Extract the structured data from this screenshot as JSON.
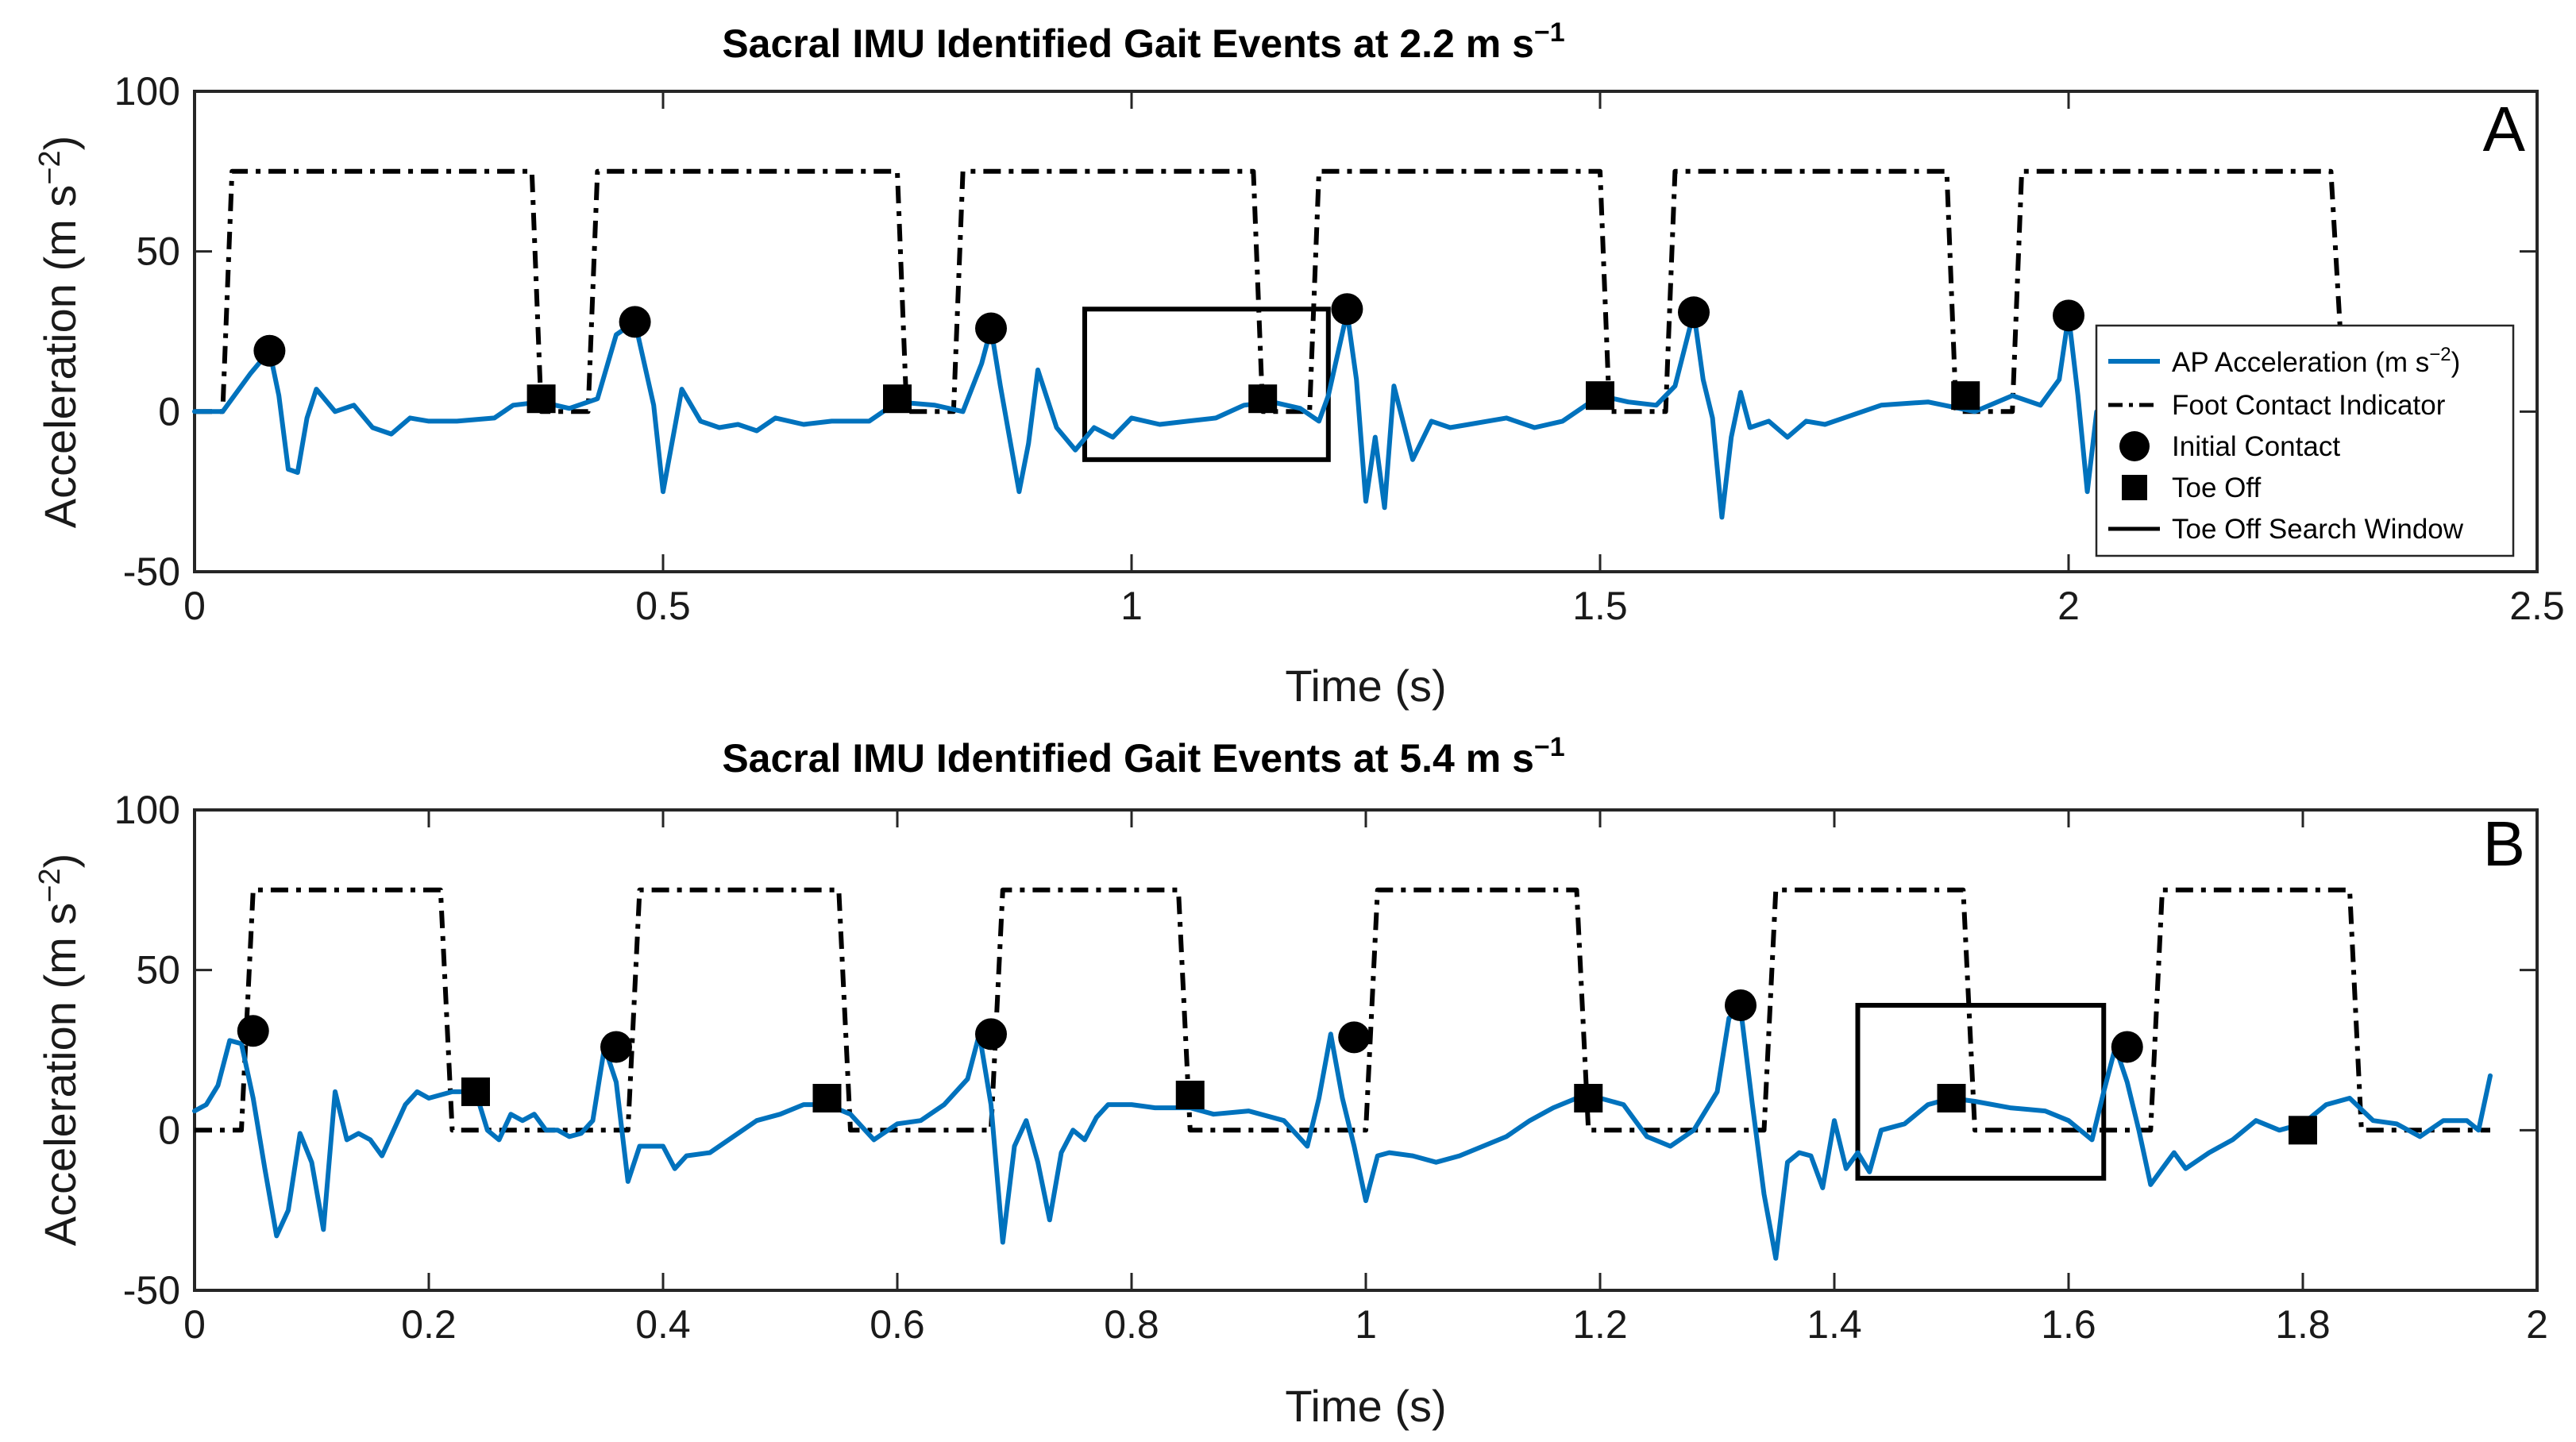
{
  "chart_data": [
    {
      "type": "line",
      "panel_label": "A",
      "title": "Sacral IMU Identified Gait Events at 2.2 m s",
      "title_exponent": "−1",
      "xlabel": "Time (s)",
      "ylabel": "Acceleration (m s",
      "ylabel_exponent": "−2",
      "ylabel_close": ")",
      "xlim": [
        0,
        2.5
      ],
      "ylim": [
        -50,
        100
      ],
      "xticks": [
        0,
        0.5,
        1,
        1.5,
        2,
        2.5
      ],
      "xtick_labels": [
        "0",
        "0.5",
        "1",
        "1.5",
        "2",
        "2.5"
      ],
      "yticks": [
        -50,
        0,
        50,
        100
      ],
      "ytick_labels": [
        "-50",
        "0",
        "50",
        "100"
      ],
      "legend": {
        "position": "right",
        "entries": [
          {
            "label": "AP Acceleration (m s",
            "exp": "−2",
            "close": ")"
          },
          {
            "label": "Foot Contact Indicator"
          },
          {
            "label": "Initial Contact"
          },
          {
            "label": "Toe Off"
          },
          {
            "label": "Toe Off Search Window"
          }
        ]
      },
      "colors": {
        "accel": "#0072BD",
        "indicator": "#000000",
        "markers": "#000000"
      },
      "series": [
        {
          "name": "AP Acceleration",
          "x": [
            0,
            0.03,
            0.06,
            0.08,
            0.09,
            0.1,
            0.11,
            0.12,
            0.13,
            0.15,
            0.17,
            0.19,
            0.21,
            0.23,
            0.25,
            0.28,
            0.32,
            0.34,
            0.37,
            0.4,
            0.43,
            0.45,
            0.47,
            0.49,
            0.5,
            0.52,
            0.54,
            0.56,
            0.58,
            0.6,
            0.62,
            0.65,
            0.68,
            0.72,
            0.75,
            0.79,
            0.82,
            0.84,
            0.85,
            0.86,
            0.88,
            0.89,
            0.9,
            0.92,
            0.94,
            0.96,
            0.98,
            1.0,
            1.03,
            1.06,
            1.09,
            1.12,
            1.15,
            1.18,
            1.2,
            1.21,
            1.23,
            1.24,
            1.25,
            1.26,
            1.27,
            1.28,
            1.3,
            1.32,
            1.34,
            1.36,
            1.38,
            1.4,
            1.43,
            1.46,
            1.5,
            1.53,
            1.56,
            1.58,
            1.6,
            1.61,
            1.62,
            1.63,
            1.64,
            1.65,
            1.66,
            1.68,
            1.7,
            1.72,
            1.74,
            1.76,
            1.8,
            1.85,
            1.9,
            1.94,
            1.97,
            1.99,
            2.0,
            2.01,
            2.02,
            2.03,
            2.04
          ],
          "y": [
            0,
            0,
            12,
            19,
            5,
            -18,
            -19,
            -2,
            7,
            0,
            2,
            -5,
            -7,
            -2,
            -3,
            -3,
            -2,
            2,
            3,
            1,
            4,
            24,
            28,
            2,
            -25,
            7,
            -3,
            -5,
            -4,
            -6,
            -2,
            -4,
            -3,
            -3,
            3,
            2,
            0,
            15,
            26,
            8,
            -25,
            -10,
            13,
            -5,
            -12,
            -5,
            -8,
            -2,
            -4,
            -3,
            -2,
            2,
            3,
            1,
            -3,
            5,
            31,
            10,
            -28,
            -8,
            -30,
            8,
            -15,
            -3,
            -5,
            -4,
            -3,
            -2,
            -5,
            -3,
            5,
            3,
            2,
            8,
            31,
            10,
            -2,
            -33,
            -8,
            6,
            -5,
            -3,
            -8,
            -3,
            -4,
            -2,
            2,
            3,
            0,
            5,
            2,
            10,
            30,
            5,
            -25,
            0,
            2
          ]
        },
        {
          "name": "Foot Contact Indicator",
          "x": [
            0,
            0.03,
            0.04,
            0.36,
            0.37,
            0.42,
            0.43,
            0.75,
            0.76,
            0.81,
            0.82,
            1.13,
            1.14,
            1.19,
            1.2,
            1.5,
            1.51,
            1.57,
            1.58,
            1.87,
            1.88,
            1.94,
            1.95,
            2.28,
            2.29
          ],
          "y": [
            0,
            0,
            75,
            75,
            0,
            0,
            75,
            75,
            0,
            0,
            75,
            75,
            0,
            0,
            75,
            75,
            0,
            0,
            75,
            75,
            0,
            0,
            75,
            75,
            25
          ]
        }
      ],
      "initial_contact": {
        "x": [
          0.08,
          0.47,
          0.85,
          1.23,
          1.6,
          2.0
        ],
        "y": [
          19,
          28,
          26,
          32,
          31,
          30
        ]
      },
      "toe_off": {
        "x": [
          0.37,
          0.75,
          1.14,
          1.5,
          1.89
        ],
        "y": [
          4,
          4,
          4,
          5,
          5
        ]
      },
      "toe_off_search_window": {
        "x": [
          0.95,
          1.21
        ],
        "y": [
          -15,
          32
        ]
      }
    },
    {
      "type": "line",
      "panel_label": "B",
      "title": "Sacral IMU Identified Gait Events at 5.4 m s",
      "title_exponent": "−1",
      "xlabel": "Time (s)",
      "ylabel": "Acceleration (m s",
      "ylabel_exponent": "−2",
      "ylabel_close": ")",
      "xlim": [
        0,
        2
      ],
      "ylim": [
        -50,
        100
      ],
      "xticks": [
        0,
        0.2,
        0.4,
        0.6,
        0.8,
        1,
        1.2,
        1.4,
        1.6,
        1.8,
        2
      ],
      "xtick_labels": [
        "0",
        "0.2",
        "0.4",
        "0.6",
        "0.8",
        "1",
        "1.2",
        "1.4",
        "1.6",
        "1.8",
        "2"
      ],
      "yticks": [
        -50,
        0,
        50,
        100
      ],
      "ytick_labels": [
        "-50",
        "0",
        "50",
        "100"
      ],
      "colors": {
        "accel": "#0072BD",
        "indicator": "#000000",
        "markers": "#000000"
      },
      "series": [
        {
          "name": "AP Acceleration",
          "x": [
            0,
            0.01,
            0.02,
            0.03,
            0.04,
            0.05,
            0.06,
            0.07,
            0.08,
            0.09,
            0.1,
            0.11,
            0.12,
            0.13,
            0.14,
            0.15,
            0.16,
            0.17,
            0.18,
            0.19,
            0.2,
            0.22,
            0.24,
            0.25,
            0.26,
            0.27,
            0.28,
            0.29,
            0.3,
            0.31,
            0.32,
            0.33,
            0.34,
            0.35,
            0.36,
            0.37,
            0.38,
            0.39,
            0.4,
            0.41,
            0.42,
            0.44,
            0.46,
            0.48,
            0.5,
            0.52,
            0.54,
            0.56,
            0.58,
            0.6,
            0.62,
            0.64,
            0.66,
            0.67,
            0.68,
            0.69,
            0.7,
            0.71,
            0.72,
            0.73,
            0.74,
            0.75,
            0.76,
            0.77,
            0.78,
            0.8,
            0.82,
            0.84,
            0.85,
            0.87,
            0.9,
            0.93,
            0.95,
            0.96,
            0.97,
            0.98,
            0.99,
            1.0,
            1.01,
            1.02,
            1.04,
            1.06,
            1.08,
            1.1,
            1.12,
            1.14,
            1.16,
            1.18,
            1.19,
            1.2,
            1.22,
            1.24,
            1.26,
            1.28,
            1.3,
            1.31,
            1.32,
            1.33,
            1.34,
            1.35,
            1.36,
            1.37,
            1.38,
            1.39,
            1.4,
            1.41,
            1.42,
            1.43,
            1.44,
            1.46,
            1.48,
            1.5,
            1.52,
            1.55,
            1.58,
            1.6,
            1.62,
            1.63,
            1.64,
            1.65,
            1.66,
            1.67,
            1.68,
            1.69,
            1.7,
            1.72,
            1.74,
            1.76,
            1.78,
            1.8,
            1.82,
            1.84,
            1.86,
            1.88,
            1.9,
            1.92,
            1.94,
            1.95,
            1.96
          ],
          "y": [
            6,
            8,
            14,
            28,
            27,
            10,
            -12,
            -33,
            -25,
            -1,
            -10,
            -31,
            12,
            -3,
            -1,
            -3,
            -8,
            0,
            8,
            12,
            10,
            12,
            12,
            0,
            -3,
            5,
            3,
            5,
            0,
            0,
            -2,
            -1,
            3,
            26,
            15,
            -16,
            -5,
            -5,
            -5,
            -12,
            -8,
            -7,
            -2,
            3,
            5,
            8,
            8,
            5,
            -3,
            2,
            3,
            8,
            16,
            30,
            8,
            -35,
            -5,
            3,
            -10,
            -28,
            -7,
            0,
            -3,
            4,
            8,
            8,
            7,
            7,
            7,
            5,
            6,
            3,
            -5,
            10,
            30,
            10,
            -5,
            -22,
            -8,
            -7,
            -8,
            -10,
            -8,
            -5,
            -2,
            3,
            7,
            10,
            12,
            10,
            8,
            -2,
            -5,
            0,
            12,
            35,
            38,
            8,
            -20,
            -40,
            -10,
            -7,
            -8,
            -18,
            3,
            -12,
            -7,
            -13,
            0,
            2,
            8,
            10,
            9,
            7,
            6,
            3,
            -3,
            12,
            26,
            15,
            0,
            -17,
            -12,
            -7,
            -12,
            -7,
            -3,
            3,
            0,
            2,
            8,
            10,
            3,
            2,
            -2,
            3,
            3,
            0,
            17
          ]
        },
        {
          "name": "Foot Contact Indicator",
          "x": [
            0,
            0.04,
            0.05,
            0.21,
            0.22,
            0.37,
            0.38,
            0.55,
            0.56,
            0.68,
            0.69,
            0.84,
            0.85,
            1.0,
            1.01,
            1.18,
            1.19,
            1.34,
            1.35,
            1.51,
            1.52,
            1.67,
            1.68,
            1.84,
            1.85,
            1.96
          ],
          "y": [
            0,
            0,
            75,
            75,
            0,
            0,
            75,
            75,
            0,
            0,
            75,
            75,
            0,
            0,
            75,
            75,
            0,
            0,
            75,
            75,
            0,
            0,
            75,
            75,
            0,
            0
          ]
        }
      ],
      "initial_contact": {
        "x": [
          0.05,
          0.36,
          0.68,
          0.99,
          1.32,
          1.65
        ],
        "y": [
          31,
          26,
          30,
          29,
          39,
          26
        ]
      },
      "toe_off": {
        "x": [
          0.24,
          0.54,
          0.85,
          1.19,
          1.5,
          1.8
        ],
        "y": [
          12,
          10,
          11,
          10,
          10,
          0
        ]
      },
      "toe_off_search_window": {
        "x": [
          1.42,
          1.63
        ],
        "y": [
          -15,
          39
        ]
      }
    }
  ]
}
